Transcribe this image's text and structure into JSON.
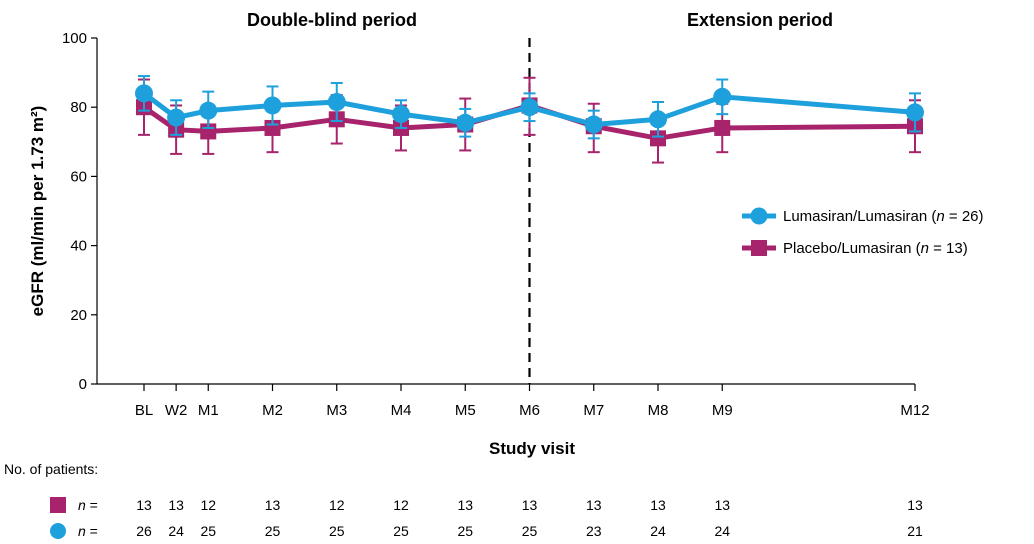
{
  "chart_data": {
    "type": "line",
    "period_titles": [
      "Double-blind period",
      "Extension period"
    ],
    "xlabel": "Study visit",
    "ylabel": "eGFR (ml/min per 1.73 m²)",
    "ylim": [
      0,
      100
    ],
    "yticks": [
      0,
      20,
      40,
      60,
      80,
      100
    ],
    "grid": false,
    "legend_position": "right",
    "categories": [
      "BL",
      "W2",
      "M1",
      "M2",
      "M3",
      "M4",
      "M5",
      "M6",
      "M7",
      "M8",
      "M9",
      "M12"
    ],
    "x_months": [
      0,
      0.5,
      1,
      2,
      3,
      4,
      5,
      6,
      7,
      8,
      9,
      12
    ],
    "divider_at": 6,
    "series": [
      {
        "name_main": "Lumasiran/Lumasiran (",
        "name_n": "n",
        "name_tail": " = 26)",
        "color": "#1ea0dc",
        "marker": "circle",
        "values": [
          84,
          77,
          79,
          80.5,
          81.5,
          78,
          75.5,
          80,
          75,
          76.5,
          83,
          78.5
        ],
        "err_upper": [
          89,
          82,
          84.5,
          86,
          87,
          82,
          79.5,
          84,
          79,
          81.5,
          88,
          84
        ],
        "err_lower": [
          79,
          72,
          74,
          75,
          76,
          74,
          71.5,
          76,
          71,
          71.5,
          78,
          73
        ]
      },
      {
        "name_main": "Placebo/Lumasiran (",
        "name_n": "n",
        "name_tail": " = 13)",
        "color": "#a7236b",
        "marker": "square",
        "values": [
          80,
          73.5,
          73,
          74,
          76.5,
          74,
          75,
          80.5,
          74.5,
          71,
          74,
          74.5
        ],
        "err_upper": [
          88,
          80.5,
          79.5,
          81,
          83.5,
          80.5,
          82.5,
          88.5,
          81,
          78,
          81,
          82
        ],
        "err_lower": [
          72,
          66.5,
          66.5,
          67,
          69.5,
          67.5,
          67.5,
          72,
          67,
          64,
          67,
          67
        ]
      }
    ]
  },
  "patients_table": {
    "heading": "No. of patients:",
    "rows": [
      {
        "marker": "square",
        "color": "#a7236b",
        "label_n": "n",
        "label_eq": " =",
        "counts": [
          "13",
          "13",
          "12",
          "13",
          "12",
          "12",
          "13",
          "13",
          "13",
          "13",
          "13",
          "13"
        ]
      },
      {
        "marker": "circle",
        "color": "#1ea0dc",
        "label_n": "n",
        "label_eq": " =",
        "counts": [
          "26",
          "24",
          "25",
          "25",
          "25",
          "25",
          "25",
          "25",
          "23",
          "24",
          "24",
          "21"
        ]
      }
    ]
  }
}
